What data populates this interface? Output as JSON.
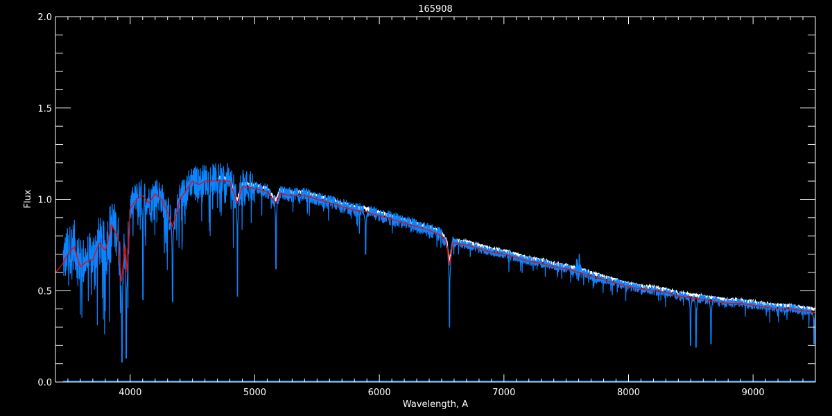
{
  "chart_data": {
    "type": "line",
    "title": "165908",
    "xlabel": "Wavelength, A",
    "ylabel": "Flux",
    "xlim": [
      3400,
      9500
    ],
    "ylim": [
      0.0,
      2.0
    ],
    "xticks": [
      4000,
      5000,
      6000,
      7000,
      8000,
      9000
    ],
    "xtick_labels": [
      "4000",
      "5000",
      "6000",
      "7000",
      "8000",
      "9000"
    ],
    "x_minor_step": 100,
    "yticks": [
      0.0,
      0.5,
      1.0,
      1.5,
      2.0
    ],
    "ytick_labels": [
      "0.0",
      "0.5",
      "1.0",
      "1.5",
      "2.0"
    ],
    "y_minor_step": 0.1,
    "grid": false,
    "background": "#000000",
    "axis_color": "#ffffff",
    "series": [
      {
        "key": "model",
        "color": "#ff0000",
        "x": [
          3400,
          3450,
          3500,
          3550,
          3600,
          3650,
          3700,
          3750,
          3800,
          3850,
          3900,
          3930,
          3960,
          3975,
          4000,
          4050,
          4100,
          4150,
          4200,
          4250,
          4300,
          4340,
          4400,
          4450,
          4500,
          4550,
          4600,
          4700,
          4800,
          4860,
          4900,
          5000,
          5100,
          5170,
          5200,
          5300,
          5400,
          5500,
          5600,
          5700,
          5800,
          5900,
          6000,
          6100,
          6200,
          6300,
          6400,
          6500,
          6540,
          6563,
          6590,
          6700,
          6800,
          6900,
          7000,
          7100,
          7200,
          7300,
          7400,
          7500,
          7600,
          7700,
          7800,
          7900,
          8000,
          8100,
          8200,
          8300,
          8400,
          8500,
          8600,
          8700,
          8800,
          8900,
          9000,
          9100,
          9200,
          9300,
          9400,
          9500
        ],
        "y": [
          0.6,
          0.64,
          0.7,
          0.74,
          0.63,
          0.66,
          0.67,
          0.76,
          0.72,
          0.86,
          0.8,
          0.55,
          0.75,
          0.6,
          0.95,
          1.0,
          1.02,
          0.98,
          1.03,
          1.0,
          0.93,
          0.85,
          1.0,
          1.05,
          1.1,
          1.08,
          1.1,
          1.1,
          1.1,
          0.98,
          1.07,
          1.06,
          1.04,
          0.98,
          1.03,
          1.02,
          1.02,
          1.0,
          0.98,
          0.96,
          0.94,
          0.93,
          0.91,
          0.89,
          0.87,
          0.85,
          0.83,
          0.8,
          0.76,
          0.64,
          0.76,
          0.75,
          0.73,
          0.71,
          0.7,
          0.68,
          0.66,
          0.65,
          0.63,
          0.62,
          0.6,
          0.58,
          0.56,
          0.54,
          0.52,
          0.51,
          0.5,
          0.49,
          0.47,
          0.46,
          0.45,
          0.44,
          0.43,
          0.43,
          0.42,
          0.41,
          0.4,
          0.4,
          0.39,
          0.38
        ]
      },
      {
        "key": "comparison",
        "color": "#ffffff",
        "offset_from_model": 0.02
      },
      {
        "key": "observed",
        "color": "#0a84ff",
        "x_start": 3460,
        "x_end": 9500,
        "strong_lines": [
          {
            "x": 3934,
            "y": 0.11
          },
          {
            "x": 3968,
            "y": 0.13
          },
          {
            "x": 4102,
            "y": 0.45
          },
          {
            "x": 4340,
            "y": 0.44
          },
          {
            "x": 4861,
            "y": 0.47
          },
          {
            "x": 5170,
            "y": 0.62
          },
          {
            "x": 5890,
            "y": 0.7
          },
          {
            "x": 6563,
            "y": 0.3
          },
          {
            "x": 8498,
            "y": 0.2
          },
          {
            "x": 8542,
            "y": 0.19
          },
          {
            "x": 8662,
            "y": 0.21
          },
          {
            "x": 9490,
            "y": 0.21
          }
        ],
        "emission_features": [
          {
            "x": 7605,
            "y": 0.7
          }
        ]
      },
      {
        "key": "error",
        "color": "#0a84ff",
        "level": 0.0
      }
    ]
  }
}
